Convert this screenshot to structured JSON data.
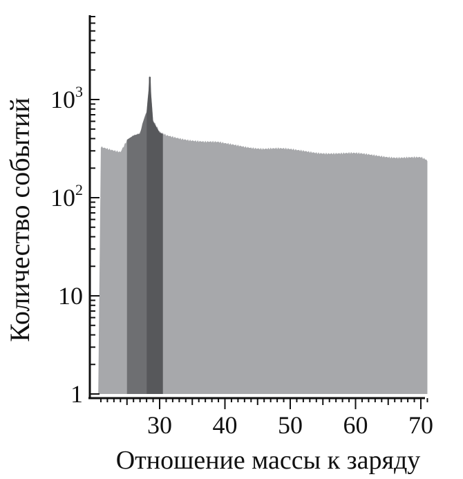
{
  "chart_data": {
    "type": "bar",
    "title": "",
    "xlabel": "Отношение массы к заряду",
    "ylabel": "Количество событий",
    "y_scale": "log",
    "ylim": [
      1,
      20000
    ],
    "xlim": [
      20,
      72
    ],
    "y_ticks": [
      {
        "value": 1,
        "base": "1",
        "exp": ""
      },
      {
        "value": 10,
        "base": "10",
        "exp": ""
      },
      {
        "value": 100,
        "base": "10",
        "exp": "2"
      },
      {
        "value": 1000,
        "base": "10",
        "exp": "3"
      }
    ],
    "x_ticks": [
      30,
      40,
      50,
      60,
      70
    ],
    "colors": {
      "background_bars": "#a7a8ab",
      "medium_band": "#6e6f72",
      "dark_band": "#57585b",
      "axis": "#111111"
    },
    "highlight_bands": [
      {
        "from": 25.0,
        "to": 28.0,
        "color": "medium"
      },
      {
        "from": 28.0,
        "to": 30.5,
        "color": "dark"
      }
    ],
    "series": [
      {
        "x": [
          21,
          22,
          23,
          24,
          25,
          26,
          27,
          27.5,
          28,
          28.5,
          29,
          30,
          31,
          32,
          33,
          34,
          35,
          36,
          37,
          38,
          39,
          40,
          41,
          42,
          43,
          44,
          45,
          46,
          47,
          48,
          49,
          50,
          51,
          52,
          53,
          54,
          55,
          56,
          57,
          58,
          59,
          60,
          61,
          62,
          63,
          64,
          65,
          66,
          67,
          68,
          69,
          70,
          71
        ],
        "values": [
          330,
          320,
          310,
          300,
          390,
          430,
          450,
          600,
          740,
          1700,
          600,
          460,
          430,
          420,
          410,
          400,
          390,
          380,
          370,
          365,
          360,
          350,
          345,
          340,
          335,
          330,
          325,
          320,
          318,
          315,
          310,
          305,
          300,
          298,
          295,
          292,
          290,
          288,
          285,
          282,
          280,
          278,
          275,
          272,
          270,
          268,
          265,
          262,
          260,
          258,
          255,
          252,
          235
        ]
      }
    ]
  }
}
